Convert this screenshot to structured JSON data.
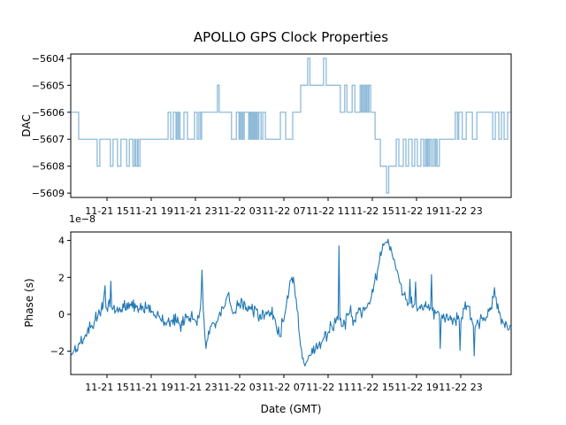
{
  "title": "APOLLO GPS Clock Properties",
  "background": "#ffffff",
  "x_axis": {
    "xlabel": "Date (GMT)",
    "tick_labels": [
      "11-21 15",
      "11-21 19",
      "11-21 23",
      "11-22 03",
      "11-22 07",
      "11-22 11",
      "11-22 15",
      "11-22 19",
      "11-22 23"
    ],
    "tick_positions": [
      0.0823,
      0.1827,
      0.2831,
      0.3835,
      0.4839,
      0.5843,
      0.6847,
      0.7851,
      0.8855
    ]
  },
  "chart_data": [
    {
      "type": "line",
      "name": "dac",
      "ylabel": "DAC",
      "drawstyle": "steps-post",
      "line_color": "#1f77b4",
      "line_alpha": 0.5,
      "y_tick_labels": [
        "−5604",
        "−5605",
        "−5606",
        "−5607",
        "−5608",
        "−5609"
      ],
      "y_tick_values": [
        -5604,
        -5605,
        -5606,
        -5607,
        -5608,
        -5609
      ],
      "ylim": [
        -5609.16,
        -5603.84
      ],
      "steps": [
        [
          0.0,
          -5606
        ],
        [
          0.018,
          -5607
        ],
        [
          0.06,
          -5608
        ],
        [
          0.066,
          -5607
        ],
        [
          0.09,
          -5608
        ],
        [
          0.096,
          -5607
        ],
        [
          0.106,
          -5608
        ],
        [
          0.114,
          -5607
        ],
        [
          0.127,
          -5608
        ],
        [
          0.133,
          -5607
        ],
        [
          0.141,
          -5608
        ],
        [
          0.145,
          -5607
        ],
        [
          0.147,
          -5608
        ],
        [
          0.151,
          -5607
        ],
        [
          0.153,
          -5608
        ],
        [
          0.157,
          -5607
        ],
        [
          0.221,
          -5606
        ],
        [
          0.227,
          -5607
        ],
        [
          0.233,
          -5606
        ],
        [
          0.239,
          -5607
        ],
        [
          0.241,
          -5606
        ],
        [
          0.244,
          -5607
        ],
        [
          0.245,
          -5606
        ],
        [
          0.248,
          -5607
        ],
        [
          0.257,
          -5606
        ],
        [
          0.265,
          -5607
        ],
        [
          0.281,
          -5606
        ],
        [
          0.287,
          -5607
        ],
        [
          0.291,
          -5606
        ],
        [
          0.295,
          -5607
        ],
        [
          0.297,
          -5606
        ],
        [
          0.333,
          -5605
        ],
        [
          0.337,
          -5606
        ],
        [
          0.365,
          -5607
        ],
        [
          0.376,
          -5606
        ],
        [
          0.382,
          -5607
        ],
        [
          0.384,
          -5606
        ],
        [
          0.386,
          -5607
        ],
        [
          0.389,
          -5606
        ],
        [
          0.391,
          -5607
        ],
        [
          0.394,
          -5606
        ],
        [
          0.404,
          -5607
        ],
        [
          0.406,
          -5606
        ],
        [
          0.408,
          -5607
        ],
        [
          0.41,
          -5606
        ],
        [
          0.412,
          -5607
        ],
        [
          0.414,
          -5606
        ],
        [
          0.416,
          -5607
        ],
        [
          0.418,
          -5606
        ],
        [
          0.42,
          -5607
        ],
        [
          0.422,
          -5606
        ],
        [
          0.424,
          -5607
        ],
        [
          0.427,
          -5606
        ],
        [
          0.432,
          -5607
        ],
        [
          0.436,
          -5606
        ],
        [
          0.442,
          -5607
        ],
        [
          0.476,
          -5606
        ],
        [
          0.488,
          -5607
        ],
        [
          0.504,
          -5606
        ],
        [
          0.522,
          -5605
        ],
        [
          0.538,
          -5604
        ],
        [
          0.543,
          -5605
        ],
        [
          0.574,
          -5604
        ],
        [
          0.58,
          -5605
        ],
        [
          0.612,
          -5606
        ],
        [
          0.622,
          -5605
        ],
        [
          0.627,
          -5606
        ],
        [
          0.639,
          -5605
        ],
        [
          0.645,
          -5606
        ],
        [
          0.657,
          -5605
        ],
        [
          0.66,
          -5606
        ],
        [
          0.662,
          -5605
        ],
        [
          0.665,
          -5606
        ],
        [
          0.667,
          -5605
        ],
        [
          0.67,
          -5606
        ],
        [
          0.672,
          -5605
        ],
        [
          0.675,
          -5606
        ],
        [
          0.677,
          -5605
        ],
        [
          0.681,
          -5606
        ],
        [
          0.691,
          -5607
        ],
        [
          0.703,
          -5608
        ],
        [
          0.717,
          -5609
        ],
        [
          0.722,
          -5608
        ],
        [
          0.739,
          -5607
        ],
        [
          0.745,
          -5608
        ],
        [
          0.755,
          -5607
        ],
        [
          0.761,
          -5608
        ],
        [
          0.767,
          -5607
        ],
        [
          0.775,
          -5608
        ],
        [
          0.781,
          -5607
        ],
        [
          0.787,
          -5608
        ],
        [
          0.795,
          -5607
        ],
        [
          0.801,
          -5608
        ],
        [
          0.805,
          -5607
        ],
        [
          0.808,
          -5608
        ],
        [
          0.81,
          -5607
        ],
        [
          0.813,
          -5608
        ],
        [
          0.815,
          -5607
        ],
        [
          0.819,
          -5608
        ],
        [
          0.823,
          -5607
        ],
        [
          0.827,
          -5608
        ],
        [
          0.829,
          -5607
        ],
        [
          0.832,
          -5608
        ],
        [
          0.837,
          -5607
        ],
        [
          0.873,
          -5606
        ],
        [
          0.878,
          -5607
        ],
        [
          0.881,
          -5606
        ],
        [
          0.889,
          -5607
        ],
        [
          0.898,
          -5606
        ],
        [
          0.912,
          -5607
        ],
        [
          0.922,
          -5606
        ],
        [
          0.958,
          -5607
        ],
        [
          0.964,
          -5606
        ],
        [
          0.972,
          -5607
        ],
        [
          0.978,
          -5606
        ],
        [
          0.984,
          -5607
        ],
        [
          0.992,
          -5606
        ]
      ]
    },
    {
      "type": "line",
      "name": "phase",
      "ylabel": "Phase (s)",
      "xlabel": "Date (GMT)",
      "offset_text": "1e−8",
      "unit_scale_e": -8,
      "line_color": "#1f77b4",
      "y_tick_labels": [
        "4",
        "2",
        "0",
        "−2"
      ],
      "y_tick_values": [
        4,
        2,
        0,
        -2
      ],
      "ylim": [
        -3.26,
        4.46
      ],
      "anchors": [
        [
          0.0,
          -2.05,
          0.25
        ],
        [
          0.008,
          -1.95,
          0.3
        ],
        [
          0.02,
          -1.6,
          0.3
        ],
        [
          0.034,
          -1.1,
          0.3
        ],
        [
          0.048,
          -0.6,
          0.3
        ],
        [
          0.062,
          -0.05,
          0.3
        ],
        [
          0.072,
          0.25,
          0.4
        ],
        [
          0.078,
          1.55,
          0.15
        ],
        [
          0.08,
          0.35,
          0.45
        ],
        [
          0.089,
          0.4,
          0.45
        ],
        [
          0.091,
          1.8,
          0.15
        ],
        [
          0.093,
          0.4,
          0.45
        ],
        [
          0.104,
          0.2,
          0.4
        ],
        [
          0.12,
          0.35,
          0.35
        ],
        [
          0.137,
          0.45,
          0.4
        ],
        [
          0.155,
          0.3,
          0.35
        ],
        [
          0.173,
          0.3,
          0.35
        ],
        [
          0.187,
          0.15,
          0.3
        ],
        [
          0.201,
          -0.1,
          0.3
        ],
        [
          0.213,
          -0.4,
          0.3
        ],
        [
          0.227,
          -0.35,
          0.35
        ],
        [
          0.241,
          -0.45,
          0.4
        ],
        [
          0.253,
          -0.6,
          0.45
        ],
        [
          0.263,
          -0.2,
          0.35
        ],
        [
          0.273,
          -0.1,
          0.35
        ],
        [
          0.283,
          -0.35,
          0.3
        ],
        [
          0.291,
          -0.2,
          0.3
        ],
        [
          0.296,
          1.0,
          0.2
        ],
        [
          0.298,
          2.4,
          0.12
        ],
        [
          0.301,
          0.2,
          0.3
        ],
        [
          0.304,
          -1.0,
          0.35
        ],
        [
          0.307,
          -1.85,
          0.25
        ],
        [
          0.311,
          -1.35,
          0.4
        ],
        [
          0.317,
          -0.65,
          0.4
        ],
        [
          0.325,
          -0.5,
          0.4
        ],
        [
          0.333,
          -0.4,
          0.35
        ],
        [
          0.341,
          -0.1,
          0.35
        ],
        [
          0.349,
          0.4,
          0.4
        ],
        [
          0.357,
          1.1,
          0.3
        ],
        [
          0.363,
          0.5,
          0.4
        ],
        [
          0.371,
          0.1,
          0.4
        ],
        [
          0.38,
          0.45,
          0.4
        ],
        [
          0.39,
          0.55,
          0.4
        ],
        [
          0.4,
          0.2,
          0.4
        ],
        [
          0.41,
          0.25,
          0.45
        ],
        [
          0.42,
          0.3,
          0.45
        ],
        [
          0.43,
          0.0,
          0.4
        ],
        [
          0.44,
          -0.1,
          0.45
        ],
        [
          0.45,
          0.05,
          0.4
        ],
        [
          0.46,
          -0.05,
          0.35
        ],
        [
          0.468,
          -0.9,
          0.4
        ],
        [
          0.474,
          -1.2,
          0.35
        ],
        [
          0.482,
          -0.4,
          0.35
        ],
        [
          0.49,
          0.6,
          0.35
        ],
        [
          0.496,
          1.4,
          0.3
        ],
        [
          0.502,
          2.0,
          0.25
        ],
        [
          0.508,
          1.5,
          0.3
        ],
        [
          0.514,
          0.2,
          0.4
        ],
        [
          0.52,
          -1.3,
          0.3
        ],
        [
          0.526,
          -2.4,
          0.2
        ],
        [
          0.532,
          -2.8,
          0.15
        ],
        [
          0.538,
          -2.5,
          0.2
        ],
        [
          0.546,
          -2.2,
          0.25
        ],
        [
          0.556,
          -1.8,
          0.3
        ],
        [
          0.57,
          -1.5,
          0.35
        ],
        [
          0.584,
          -1.0,
          0.35
        ],
        [
          0.598,
          -0.55,
          0.35
        ],
        [
          0.607,
          -0.3,
          0.3
        ],
        [
          0.609,
          3.7,
          0.1
        ],
        [
          0.611,
          -0.3,
          0.35
        ],
        [
          0.62,
          -0.3,
          0.5
        ],
        [
          0.632,
          0.0,
          0.5
        ],
        [
          0.643,
          -0.3,
          0.5
        ],
        [
          0.655,
          0.25,
          0.4
        ],
        [
          0.667,
          0.2,
          0.4
        ],
        [
          0.675,
          0.6,
          0.4
        ],
        [
          0.683,
          1.0,
          0.4
        ],
        [
          0.693,
          2.0,
          0.4
        ],
        [
          0.701,
          2.9,
          0.35
        ],
        [
          0.707,
          3.5,
          0.3
        ],
        [
          0.715,
          3.9,
          0.25
        ],
        [
          0.723,
          3.7,
          0.3
        ],
        [
          0.731,
          3.1,
          0.3
        ],
        [
          0.739,
          2.4,
          0.3
        ],
        [
          0.747,
          1.7,
          0.3
        ],
        [
          0.755,
          1.1,
          0.35
        ],
        [
          0.763,
          0.8,
          0.4
        ],
        [
          0.768,
          0.6,
          0.35
        ],
        [
          0.77,
          1.9,
          0.12
        ],
        [
          0.772,
          0.6,
          0.4
        ],
        [
          0.781,
          0.55,
          0.4
        ],
        [
          0.783,
          1.75,
          0.12
        ],
        [
          0.785,
          0.5,
          0.4
        ],
        [
          0.797,
          0.5,
          0.4
        ],
        [
          0.807,
          0.4,
          0.4
        ],
        [
          0.817,
          0.3,
          0.4
        ],
        [
          0.819,
          2.15,
          0.12
        ],
        [
          0.821,
          0.2,
          0.4
        ],
        [
          0.829,
          0.05,
          0.4
        ],
        [
          0.837,
          0.0,
          0.4
        ],
        [
          0.839,
          -1.85,
          0.15
        ],
        [
          0.841,
          -0.3,
          0.4
        ],
        [
          0.851,
          -0.25,
          0.35
        ],
        [
          0.863,
          -0.3,
          0.4
        ],
        [
          0.873,
          -0.35,
          0.4
        ],
        [
          0.882,
          -0.3,
          0.4
        ],
        [
          0.884,
          -1.95,
          0.15
        ],
        [
          0.886,
          -0.4,
          0.4
        ],
        [
          0.894,
          0.3,
          0.35
        ],
        [
          0.902,
          0.45,
          0.3
        ],
        [
          0.91,
          -0.2,
          0.4
        ],
        [
          0.914,
          -0.6,
          0.4
        ],
        [
          0.916,
          -2.25,
          0.15
        ],
        [
          0.918,
          -0.7,
          0.4
        ],
        [
          0.926,
          -0.5,
          0.35
        ],
        [
          0.936,
          -0.35,
          0.35
        ],
        [
          0.946,
          -0.15,
          0.35
        ],
        [
          0.956,
          0.3,
          0.35
        ],
        [
          0.962,
          1.45,
          0.25
        ],
        [
          0.968,
          0.3,
          0.35
        ],
        [
          0.976,
          -0.15,
          0.35
        ],
        [
          0.984,
          -0.5,
          0.3
        ],
        [
          0.992,
          -0.8,
          0.3
        ],
        [
          1.0,
          -0.7,
          0.25
        ]
      ]
    }
  ]
}
